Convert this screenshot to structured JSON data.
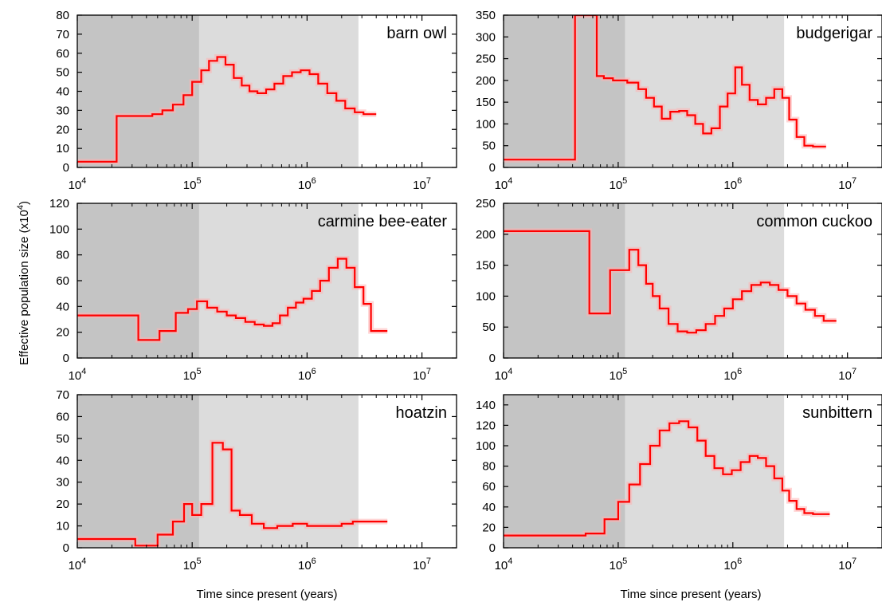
{
  "figure": {
    "ylabel": "Effective population size (x10",
    "ylabel_exp": "4",
    "ylabel_close": ")",
    "xlabel": "Time since present (years)"
  },
  "chart_data": [
    {
      "type": "line",
      "title": "barn owl",
      "xscale": "log",
      "xlim": [
        10000,
        20000000
      ],
      "ylim": [
        0,
        80
      ],
      "yticks": [
        0,
        10,
        20,
        30,
        40,
        50,
        60,
        70,
        80
      ],
      "shaded_regions": [
        [
          10000,
          115000
        ],
        [
          115000,
          2800000
        ]
      ],
      "series": [
        {
          "x": [
            10000,
            22000,
            22000,
            45000,
            45000,
            55000,
            55000,
            68000,
            68000,
            84000,
            84000,
            100000,
            100000,
            120000,
            120000,
            140000,
            140000,
            165000,
            165000,
            195000,
            195000,
            230000,
            230000,
            270000,
            270000,
            315000,
            315000,
            370000,
            370000,
            440000,
            440000,
            520000,
            520000,
            620000,
            620000,
            740000,
            740000,
            880000,
            880000,
            1050000,
            1050000,
            1250000,
            1250000,
            1500000,
            1500000,
            1800000,
            1800000,
            2150000,
            2150000,
            2600000,
            2600000,
            3100000,
            3100000,
            4000000
          ],
          "y": [
            3,
            3,
            27,
            27,
            28,
            28,
            30,
            30,
            33,
            33,
            38,
            38,
            45,
            45,
            51,
            51,
            56,
            56,
            58,
            58,
            54,
            54,
            47,
            47,
            43,
            43,
            40,
            40,
            39,
            39,
            41,
            41,
            44,
            44,
            48,
            48,
            50,
            50,
            51,
            51,
            49,
            49,
            44,
            44,
            39,
            39,
            35,
            35,
            31,
            31,
            29,
            29,
            28,
            28
          ]
        }
      ]
    },
    {
      "type": "line",
      "title": "budgerigar",
      "xscale": "log",
      "xlim": [
        10000,
        20000000
      ],
      "ylim": [
        0,
        350
      ],
      "yticks": [
        0,
        50,
        100,
        150,
        200,
        250,
        300,
        350
      ],
      "shaded_regions": [
        [
          10000,
          115000
        ],
        [
          115000,
          2800000
        ]
      ],
      "series": [
        {
          "x": [
            10000,
            42000,
            42000,
            65000,
            65000,
            75000,
            75000,
            90000,
            90000,
            120000,
            120000,
            150000,
            150000,
            175000,
            175000,
            205000,
            205000,
            240000,
            240000,
            285000,
            285000,
            340000,
            340000,
            400000,
            400000,
            470000,
            470000,
            550000,
            550000,
            650000,
            650000,
            770000,
            770000,
            900000,
            900000,
            1050000,
            1050000,
            1200000,
            1200000,
            1400000,
            1400000,
            1650000,
            1650000,
            1950000,
            1950000,
            2300000,
            2300000,
            2700000,
            2700000,
            3100000,
            3100000,
            3600000,
            3600000,
            4200000,
            4200000,
            5000000,
            5000000,
            6500000
          ],
          "y": [
            18,
            18,
            350,
            350,
            210,
            210,
            205,
            205,
            200,
            200,
            195,
            195,
            180,
            180,
            160,
            160,
            140,
            140,
            112,
            112,
            128,
            128,
            130,
            130,
            120,
            120,
            100,
            100,
            78,
            78,
            90,
            90,
            140,
            140,
            170,
            170,
            230,
            230,
            190,
            190,
            155,
            155,
            145,
            145,
            160,
            160,
            180,
            180,
            160,
            160,
            110,
            110,
            70,
            70,
            50,
            50,
            48,
            48
          ]
        }
      ]
    },
    {
      "type": "line",
      "title": "carmine bee-eater",
      "xscale": "log",
      "xlim": [
        10000,
        20000000
      ],
      "ylim": [
        0,
        120
      ],
      "yticks": [
        0,
        20,
        40,
        60,
        80,
        100,
        120
      ],
      "shaded_regions": [
        [
          10000,
          115000
        ],
        [
          115000,
          2800000
        ]
      ],
      "series": [
        {
          "x": [
            10000,
            34000,
            34000,
            52000,
            52000,
            72000,
            72000,
            92000,
            92000,
            110000,
            110000,
            135000,
            135000,
            165000,
            165000,
            200000,
            200000,
            240000,
            240000,
            290000,
            290000,
            350000,
            350000,
            420000,
            420000,
            500000,
            500000,
            580000,
            580000,
            680000,
            680000,
            800000,
            800000,
            930000,
            930000,
            1100000,
            1100000,
            1300000,
            1300000,
            1550000,
            1550000,
            1850000,
            1850000,
            2200000,
            2200000,
            2600000,
            2600000,
            3100000,
            3100000,
            3600000,
            3600000,
            5000000
          ],
          "y": [
            33,
            33,
            14,
            14,
            21,
            21,
            35,
            35,
            38,
            38,
            44,
            44,
            39,
            39,
            36,
            36,
            33,
            33,
            31,
            31,
            28,
            28,
            26,
            26,
            25,
            25,
            27,
            27,
            33,
            33,
            39,
            39,
            43,
            43,
            46,
            46,
            52,
            52,
            60,
            60,
            70,
            70,
            77,
            77,
            70,
            70,
            55,
            55,
            42,
            42,
            21,
            21
          ]
        }
      ]
    },
    {
      "type": "line",
      "title": "common cuckoo",
      "xscale": "log",
      "xlim": [
        10000,
        20000000
      ],
      "ylim": [
        0,
        250
      ],
      "yticks": [
        0,
        50,
        100,
        150,
        200,
        250
      ],
      "shaded_regions": [
        [
          10000,
          115000
        ],
        [
          115000,
          2800000
        ]
      ],
      "series": [
        {
          "x": [
            10000,
            56000,
            56000,
            85000,
            85000,
            125000,
            125000,
            150000,
            150000,
            175000,
            175000,
            200000,
            200000,
            230000,
            230000,
            275000,
            275000,
            330000,
            330000,
            400000,
            400000,
            480000,
            480000,
            580000,
            580000,
            700000,
            700000,
            840000,
            840000,
            1000000,
            1000000,
            1200000,
            1200000,
            1450000,
            1450000,
            1750000,
            1750000,
            2100000,
            2100000,
            2500000,
            2500000,
            3000000,
            3000000,
            3600000,
            3600000,
            4300000,
            4300000,
            5200000,
            5200000,
            6200000,
            6200000,
            8000000
          ],
          "y": [
            205,
            205,
            72,
            72,
            142,
            142,
            175,
            175,
            150,
            150,
            120,
            120,
            100,
            100,
            80,
            80,
            55,
            55,
            43,
            43,
            41,
            41,
            45,
            45,
            55,
            55,
            68,
            68,
            80,
            80,
            95,
            95,
            108,
            108,
            118,
            118,
            122,
            122,
            118,
            118,
            110,
            110,
            100,
            100,
            88,
            88,
            78,
            78,
            68,
            68,
            60,
            60
          ]
        }
      ]
    },
    {
      "type": "line",
      "title": "hoatzin",
      "xscale": "log",
      "xlim": [
        10000,
        20000000
      ],
      "ylim": [
        0,
        70
      ],
      "yticks": [
        0,
        10,
        20,
        30,
        40,
        50,
        60,
        70
      ],
      "shaded_regions": [
        [
          10000,
          115000
        ],
        [
          115000,
          2800000
        ]
      ],
      "series": [
        {
          "x": [
            10000,
            32000,
            32000,
            50000,
            50000,
            68000,
            68000,
            85000,
            85000,
            100000,
            100000,
            120000,
            120000,
            150000,
            150000,
            185000,
            185000,
            220000,
            220000,
            260000,
            260000,
            330000,
            330000,
            420000,
            420000,
            550000,
            550000,
            750000,
            750000,
            1000000,
            1000000,
            1400000,
            1400000,
            2000000,
            2000000,
            2500000,
            2500000,
            3300000,
            3300000,
            5000000
          ],
          "y": [
            4,
            4,
            1,
            1,
            6,
            6,
            12,
            12,
            20,
            20,
            15,
            15,
            20,
            20,
            48,
            48,
            45,
            45,
            17,
            17,
            15,
            15,
            11,
            11,
            9,
            9,
            10,
            10,
            11,
            11,
            10,
            10,
            10,
            10,
            11,
            11,
            12,
            12,
            12,
            12
          ]
        }
      ]
    },
    {
      "type": "line",
      "title": "sunbittern",
      "xscale": "log",
      "xlim": [
        10000,
        20000000
      ],
      "ylim": [
        0,
        150
      ],
      "yticks": [
        0,
        20,
        40,
        60,
        80,
        100,
        120,
        140
      ],
      "shaded_regions": [
        [
          10000,
          115000
        ],
        [
          115000,
          2800000
        ]
      ],
      "series": [
        {
          "x": [
            10000,
            52000,
            52000,
            76000,
            76000,
            100000,
            100000,
            125000,
            125000,
            155000,
            155000,
            190000,
            190000,
            230000,
            230000,
            280000,
            280000,
            340000,
            340000,
            410000,
            410000,
            490000,
            490000,
            580000,
            580000,
            690000,
            690000,
            820000,
            820000,
            980000,
            980000,
            1170000,
            1170000,
            1400000,
            1400000,
            1650000,
            1650000,
            1950000,
            1950000,
            2300000,
            2300000,
            2700000,
            2700000,
            3100000,
            3100000,
            3600000,
            3600000,
            4200000,
            4200000,
            5000000,
            5000000,
            7000000
          ],
          "y": [
            12,
            12,
            14,
            14,
            28,
            28,
            45,
            45,
            62,
            62,
            82,
            82,
            100,
            100,
            115,
            115,
            122,
            122,
            124,
            124,
            118,
            118,
            105,
            105,
            90,
            90,
            78,
            78,
            72,
            72,
            76,
            76,
            84,
            84,
            90,
            90,
            88,
            88,
            80,
            80,
            68,
            68,
            56,
            56,
            46,
            46,
            38,
            38,
            34,
            34,
            33,
            33
          ]
        }
      ]
    }
  ]
}
